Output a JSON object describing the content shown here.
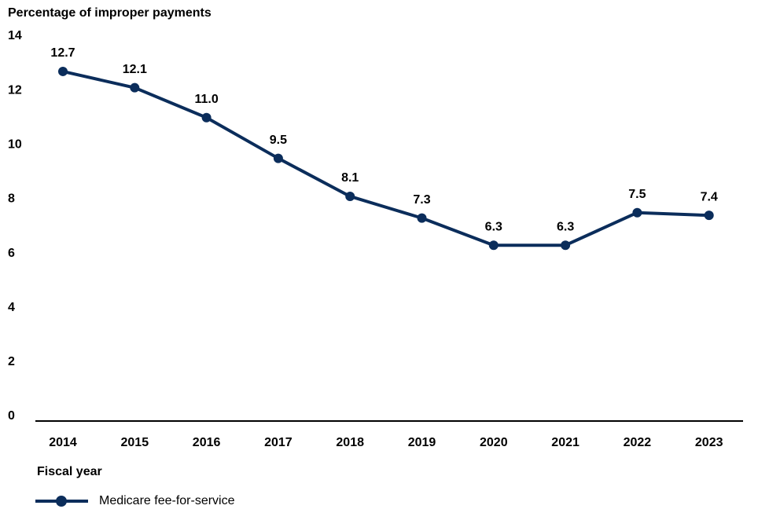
{
  "chart_data": {
    "type": "line",
    "title": "Percentage of improper payments",
    "x_label": "Fiscal year",
    "categories": [
      "2014",
      "2015",
      "2016",
      "2017",
      "2018",
      "2019",
      "2020",
      "2021",
      "2022",
      "2023"
    ],
    "series": [
      {
        "name": "Medicare fee-for-service",
        "color": "#0b2d5b",
        "values": [
          12.7,
          12.1,
          11.0,
          9.5,
          8.1,
          7.3,
          6.3,
          6.3,
          7.5,
          7.4
        ],
        "value_labels": [
          "12.7",
          "12.1",
          "11.0",
          "9.5",
          "8.1",
          "7.3",
          "6.3",
          "6.3",
          "7.5",
          "7.4"
        ]
      }
    ],
    "ylim": [
      0,
      14
    ],
    "yticks": [
      0,
      2,
      4,
      6,
      8,
      10,
      12,
      14
    ],
    "grid": false,
    "legend": "bottom-left"
  }
}
